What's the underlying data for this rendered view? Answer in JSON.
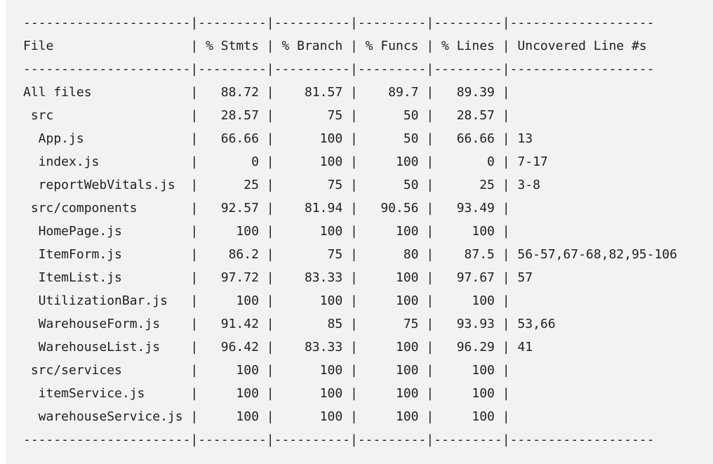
{
  "report": {
    "separator": "----------------------|---------|----------|---------|---------|-------------------",
    "header": "File                  | % Stmts | % Branch | % Funcs | % Lines | Uncovered Line #s",
    "rows": [
      "All files             |   88.72 |    81.57 |    89.7 |   89.39 |",
      " src                  |   28.57 |       75 |      50 |   28.57 |",
      "  App.js              |   66.66 |      100 |      50 |   66.66 | 13",
      "  index.js            |       0 |      100 |     100 |       0 | 7-17",
      "  reportWebVitals.js  |      25 |       75 |      50 |      25 | 3-8",
      " src/components       |   92.57 |    81.94 |   90.56 |   93.49 |",
      "  HomePage.js         |     100 |      100 |     100 |     100 |",
      "  ItemForm.js         |    86.2 |       75 |      80 |    87.5 | 56-57,67-68,82,95-106",
      "  ItemList.js         |   97.72 |    83.33 |     100 |   97.67 | 57",
      "  UtilizationBar.js   |     100 |      100 |     100 |     100 |",
      "  WarehouseForm.js    |   91.42 |       85 |      75 |   93.93 | 53,66",
      "  WarehouseList.js    |   96.42 |    83.33 |     100 |   96.29 | 41",
      " src/services         |     100 |      100 |     100 |     100 |",
      "  itemService.js      |     100 |      100 |     100 |     100 |",
      "  warehouseService.js |     100 |      100 |     100 |     100 |"
    ]
  }
}
